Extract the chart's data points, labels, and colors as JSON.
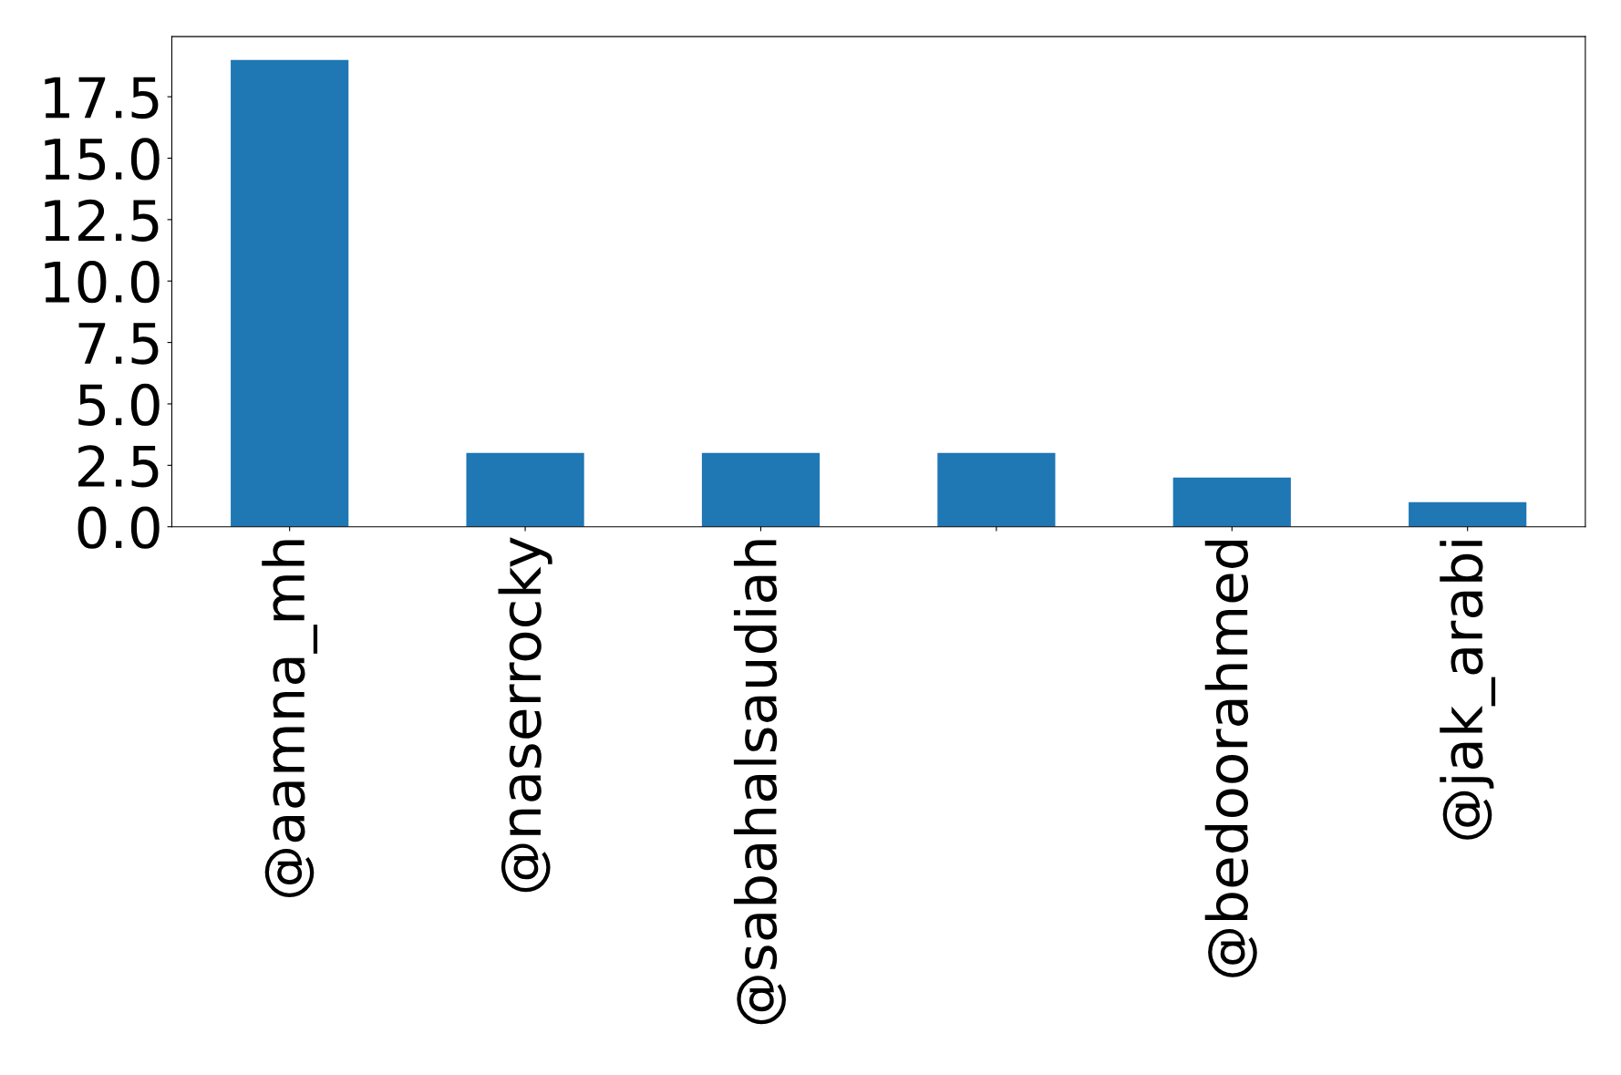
{
  "chart_data": {
    "type": "bar",
    "categories": [
      "@aamna_mh",
      "@naserrocky",
      "@sabahalsaudiah",
      null,
      "@bedoorahmed",
      "@jak_arabi"
    ],
    "values": [
      19,
      3,
      3,
      3,
      2,
      1
    ],
    "color": "#1f77b4",
    "ylim": [
      0,
      19.95
    ],
    "yticks": [
      {
        "value": 0,
        "label": "0.0"
      },
      2.5,
      {
        "value": 5,
        "label": "5.0"
      },
      7.5,
      {
        "value": 10,
        "label": "10.0"
      },
      12.5,
      {
        "value": 15,
        "label": "15.0"
      },
      17.5
    ],
    "grid": false,
    "legend": false
  }
}
